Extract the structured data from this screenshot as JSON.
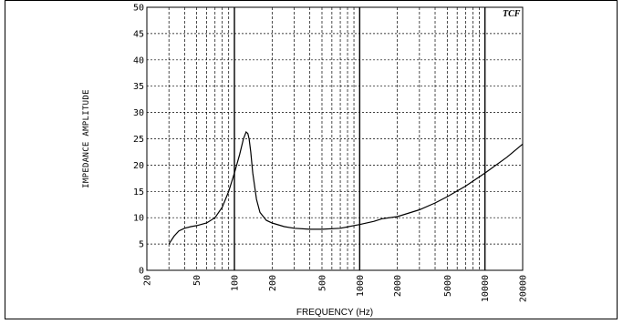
{
  "chart_data": {
    "type": "line",
    "logo": "TCF",
    "xlabel": "FREQUENCY (Hz)",
    "ylabel": "IMPEDANCE AMPLITUDE",
    "x_scale": "log",
    "xlim": [
      20,
      20000
    ],
    "ylim": [
      0,
      50
    ],
    "grid": true,
    "x_ticks": [
      "20",
      "50",
      "100",
      "200",
      "500",
      "1000",
      "2000",
      "5000",
      "10000",
      "20000"
    ],
    "y_ticks": [
      "0",
      "5",
      "10",
      "15",
      "20",
      "25",
      "30",
      "35",
      "40",
      "45",
      "50"
    ],
    "series": [
      {
        "x": [
          30,
          33,
          36,
          40,
          45,
          50,
          60,
          70,
          80,
          90,
          100,
          110,
          118,
          124,
          128,
          131,
          135,
          140,
          150,
          160,
          180,
          200,
          250,
          300,
          400,
          500,
          700,
          1000,
          1300,
          1500,
          2000,
          3000,
          4000,
          5000,
          7000,
          10000,
          15000,
          20000
        ],
        "y": [
          5.0,
          6.5,
          7.5,
          8.0,
          8.3,
          8.5,
          9.0,
          10.0,
          12.0,
          15.0,
          18.5,
          22.0,
          25.0,
          26.3,
          26.0,
          25.0,
          22.5,
          18.5,
          13.5,
          11.0,
          9.5,
          9.0,
          8.3,
          8.0,
          7.8,
          7.8,
          8.0,
          8.7,
          9.3,
          9.8,
          10.2,
          11.5,
          12.8,
          14.0,
          16.0,
          18.5,
          21.5,
          24.0
        ]
      }
    ]
  }
}
